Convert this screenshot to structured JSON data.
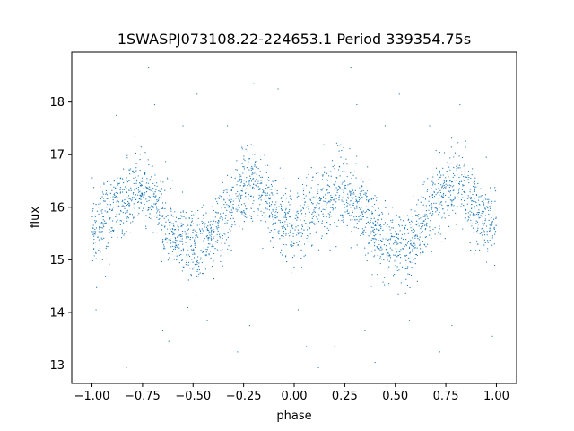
{
  "chart_data": {
    "type": "scatter",
    "title": "1SWASPJ073108.22-224653.1 Period 339354.75s",
    "xlabel": "phase",
    "ylabel": "flux",
    "xlim": [
      -1.1,
      1.1
    ],
    "ylim": [
      12.65,
      18.95
    ],
    "x_ticks": [
      -1.0,
      -0.75,
      -0.5,
      -0.25,
      0.0,
      0.25,
      0.5,
      0.75,
      1.0
    ],
    "x_tick_labels": [
      "−1.00",
      "−0.75",
      "−0.50",
      "−0.25",
      "0.00",
      "0.25",
      "0.50",
      "0.75",
      "1.00"
    ],
    "y_ticks": [
      13,
      14,
      15,
      16,
      17,
      18
    ],
    "y_tick_labels": [
      "13",
      "14",
      "15",
      "16",
      "17",
      "18"
    ],
    "grid": false,
    "point_color": "#1f77b4",
    "phase_range": [
      -1.0,
      1.0
    ],
    "light_curve_profile": {
      "phase": [
        0.0,
        0.05,
        0.1,
        0.15,
        0.2,
        0.25,
        0.3,
        0.35,
        0.4,
        0.45,
        0.5,
        0.55,
        0.6,
        0.65,
        0.7,
        0.75,
        0.8,
        0.85,
        0.9,
        0.95,
        1.0
      ],
      "flux": [
        15.6,
        15.8,
        15.95,
        16.1,
        16.25,
        16.35,
        16.2,
        15.85,
        15.55,
        15.35,
        15.2,
        15.2,
        15.45,
        15.75,
        16.1,
        16.35,
        16.45,
        16.25,
        15.95,
        15.75,
        15.6
      ],
      "scatter": 0.35
    },
    "outliers": [
      {
        "x": -0.98,
        "y": 14.05
      },
      {
        "x": -0.88,
        "y": 17.75
      },
      {
        "x": -0.83,
        "y": 12.95
      },
      {
        "x": -0.72,
        "y": 18.65
      },
      {
        "x": -0.69,
        "y": 17.95
      },
      {
        "x": -0.65,
        "y": 13.65
      },
      {
        "x": -0.62,
        "y": 13.45
      },
      {
        "x": -0.55,
        "y": 17.55
      },
      {
        "x": -0.48,
        "y": 18.15
      },
      {
        "x": -0.43,
        "y": 13.85
      },
      {
        "x": -0.33,
        "y": 17.55
      },
      {
        "x": -0.28,
        "y": 13.25
      },
      {
        "x": -0.22,
        "y": 13.75
      },
      {
        "x": -0.2,
        "y": 18.35
      },
      {
        "x": -0.08,
        "y": 18.25
      },
      {
        "x": 0.02,
        "y": 14.05
      },
      {
        "x": 0.06,
        "y": 13.35
      },
      {
        "x": 0.12,
        "y": 12.95
      },
      {
        "x": 0.2,
        "y": 13.35
      },
      {
        "x": 0.28,
        "y": 18.65
      },
      {
        "x": 0.31,
        "y": 17.95
      },
      {
        "x": 0.35,
        "y": 13.65
      },
      {
        "x": 0.4,
        "y": 13.05
      },
      {
        "x": 0.45,
        "y": 17.55
      },
      {
        "x": 0.52,
        "y": 18.15
      },
      {
        "x": 0.57,
        "y": 13.85
      },
      {
        "x": 0.67,
        "y": 17.55
      },
      {
        "x": 0.72,
        "y": 13.25
      },
      {
        "x": 0.78,
        "y": 13.75
      },
      {
        "x": 0.82,
        "y": 17.95
      },
      {
        "x": 0.95,
        "y": 16.95
      },
      {
        "x": 0.98,
        "y": 13.55
      }
    ]
  }
}
